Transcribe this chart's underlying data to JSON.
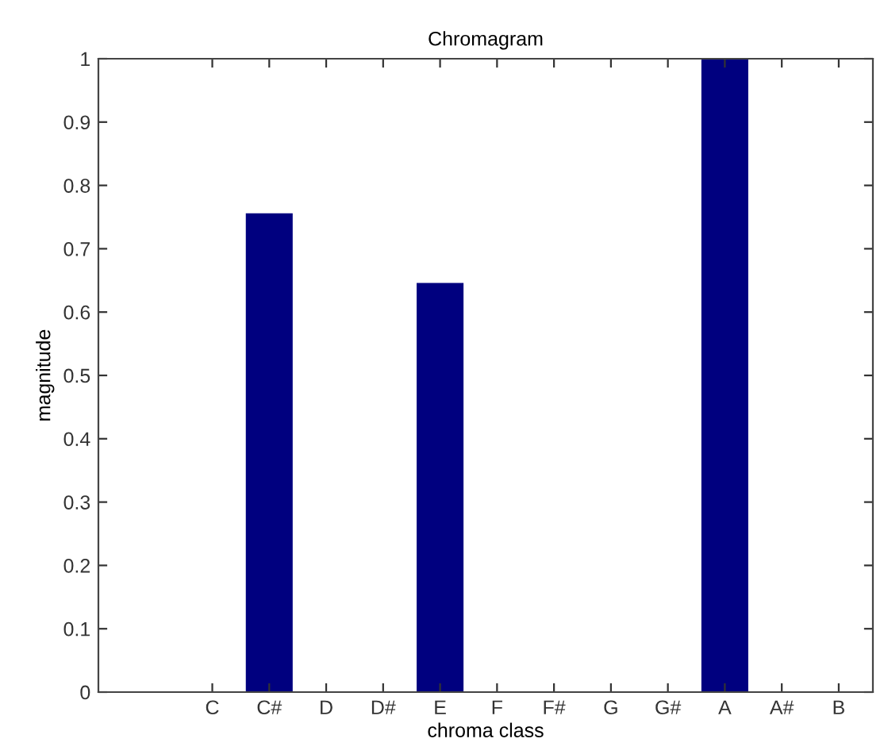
{
  "chart_data": {
    "type": "bar",
    "title": "Chromagram",
    "xlabel": "chroma class",
    "ylabel": "magnitude",
    "categories": [
      "C",
      "C#",
      "D",
      "D#",
      "E",
      "F",
      "F#",
      "G",
      "G#",
      "A",
      "A#",
      "B"
    ],
    "values": [
      0,
      0.755,
      0,
      0,
      0.645,
      0,
      0,
      0,
      0,
      1,
      0,
      0
    ],
    "color": "#00007f",
    "ylim": [
      0,
      1
    ],
    "yticks": [
      0,
      0.1,
      0.2,
      0.3,
      0.4,
      0.5,
      0.6,
      0.7,
      0.8,
      0.9,
      1
    ],
    "grid": false
  }
}
